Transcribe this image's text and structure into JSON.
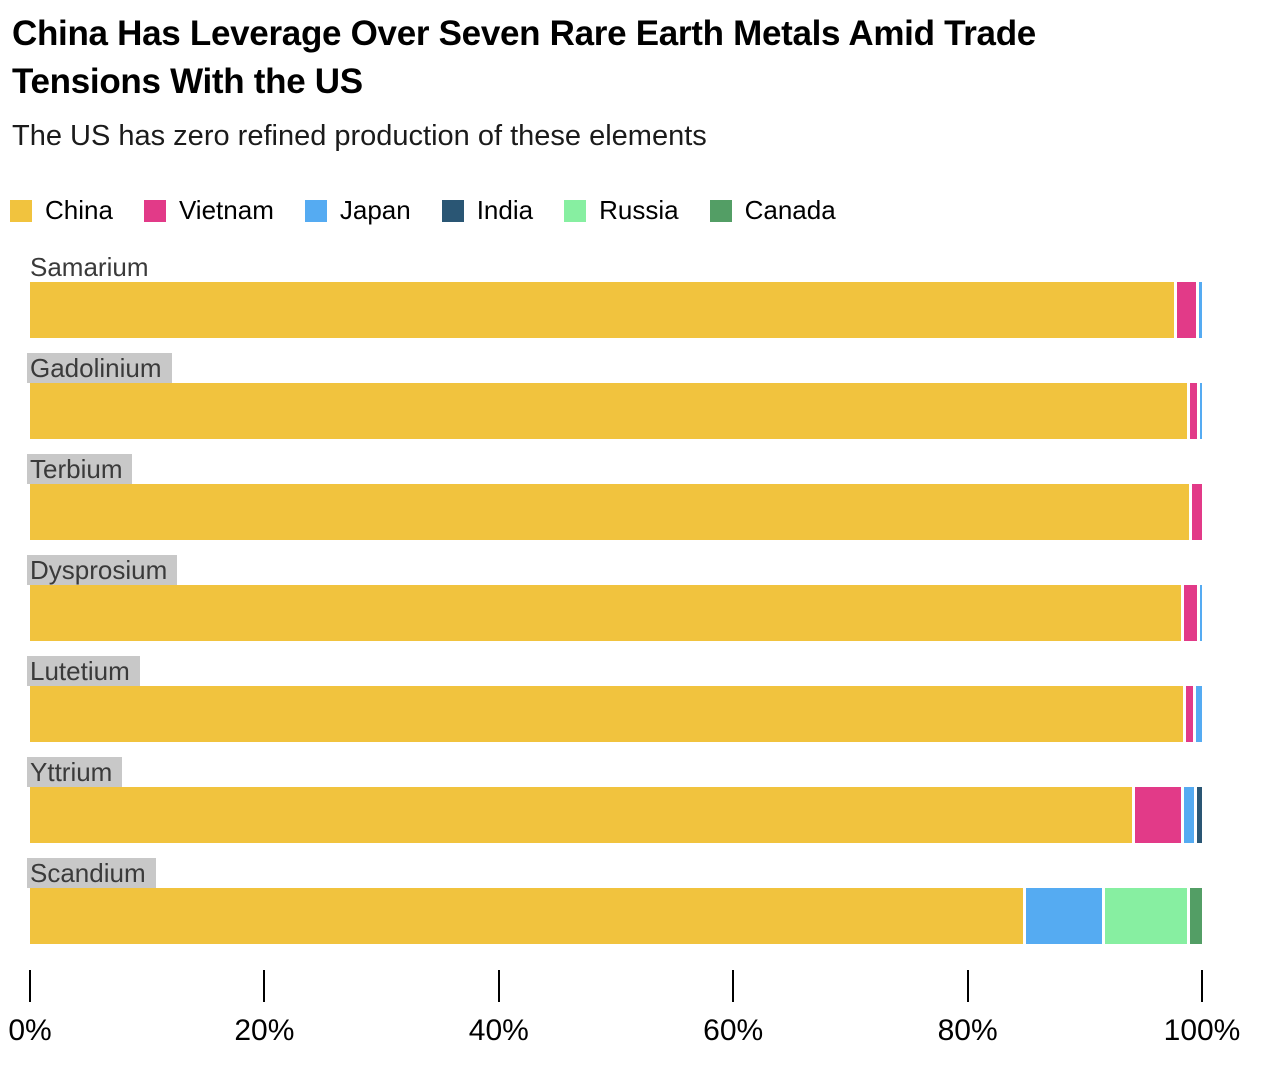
{
  "header": {
    "title_lines": [
      "China Has Leverage Over Seven Rare Earth Metals Amid Trade",
      "Tensions With the US"
    ],
    "subtitle": "The US has zero refined production of these elements"
  },
  "legend": {
    "items": [
      {
        "label": "China",
        "color": "#F1C33E"
      },
      {
        "label": "Vietnam",
        "color": "#E23A88"
      },
      {
        "label": "Japan",
        "color": "#55ABF2"
      },
      {
        "label": "India",
        "color": "#2A5674"
      },
      {
        "label": "Russia",
        "color": "#87EFA1"
      },
      {
        "label": "Canada",
        "color": "#539E65"
      }
    ]
  },
  "chart_data": {
    "type": "bar",
    "orientation": "horizontal",
    "stacked": true,
    "unit": "percent of refined production",
    "xlim": [
      0,
      100
    ],
    "x_ticks": [
      "0%",
      "20%",
      "40%",
      "60%",
      "80%",
      "100%"
    ],
    "grid": false,
    "legend_position": "top",
    "highlight_color": "#C8C8C8",
    "categories": [
      "Samarium",
      "Gadolinium",
      "Terbium",
      "Dysprosium",
      "Lutetium",
      "Yttrium",
      "Scandium"
    ],
    "rows": [
      {
        "category": "Samarium",
        "highlighted": false,
        "segments": [
          {
            "name": "China",
            "value": 97.6
          },
          {
            "name": "Vietnam",
            "value": 1.9
          },
          {
            "name": "Japan",
            "value": 0.5
          }
        ]
      },
      {
        "category": "Gadolinium",
        "highlighted": true,
        "segments": [
          {
            "name": "China",
            "value": 98.7
          },
          {
            "name": "Vietnam",
            "value": 0.9
          },
          {
            "name": "Japan",
            "value": 0.4
          }
        ]
      },
      {
        "category": "Terbium",
        "highlighted": true,
        "segments": [
          {
            "name": "China",
            "value": 98.9
          },
          {
            "name": "Vietnam",
            "value": 1.1
          }
        ]
      },
      {
        "category": "Dysprosium",
        "highlighted": true,
        "segments": [
          {
            "name": "China",
            "value": 98.2
          },
          {
            "name": "Vietnam",
            "value": 1.4
          },
          {
            "name": "Japan",
            "value": 0.4
          }
        ]
      },
      {
        "category": "Lutetium",
        "highlighted": true,
        "segments": [
          {
            "name": "China",
            "value": 98.4
          },
          {
            "name": "Vietnam",
            "value": 0.8
          },
          {
            "name": "Japan",
            "value": 0.8
          }
        ]
      },
      {
        "category": "Yttrium",
        "highlighted": true,
        "segments": [
          {
            "name": "China",
            "value": 94.0
          },
          {
            "name": "Vietnam",
            "value": 4.2
          },
          {
            "name": "Japan",
            "value": 1.1
          },
          {
            "name": "India",
            "value": 0.7
          }
        ]
      },
      {
        "category": "Scandium",
        "highlighted": true,
        "segments": [
          {
            "name": "China",
            "value": 84.7
          },
          {
            "name": "Japan",
            "value": 6.8
          },
          {
            "name": "Russia",
            "value": 7.2
          },
          {
            "name": "Canada",
            "value": 1.3
          }
        ]
      }
    ]
  }
}
